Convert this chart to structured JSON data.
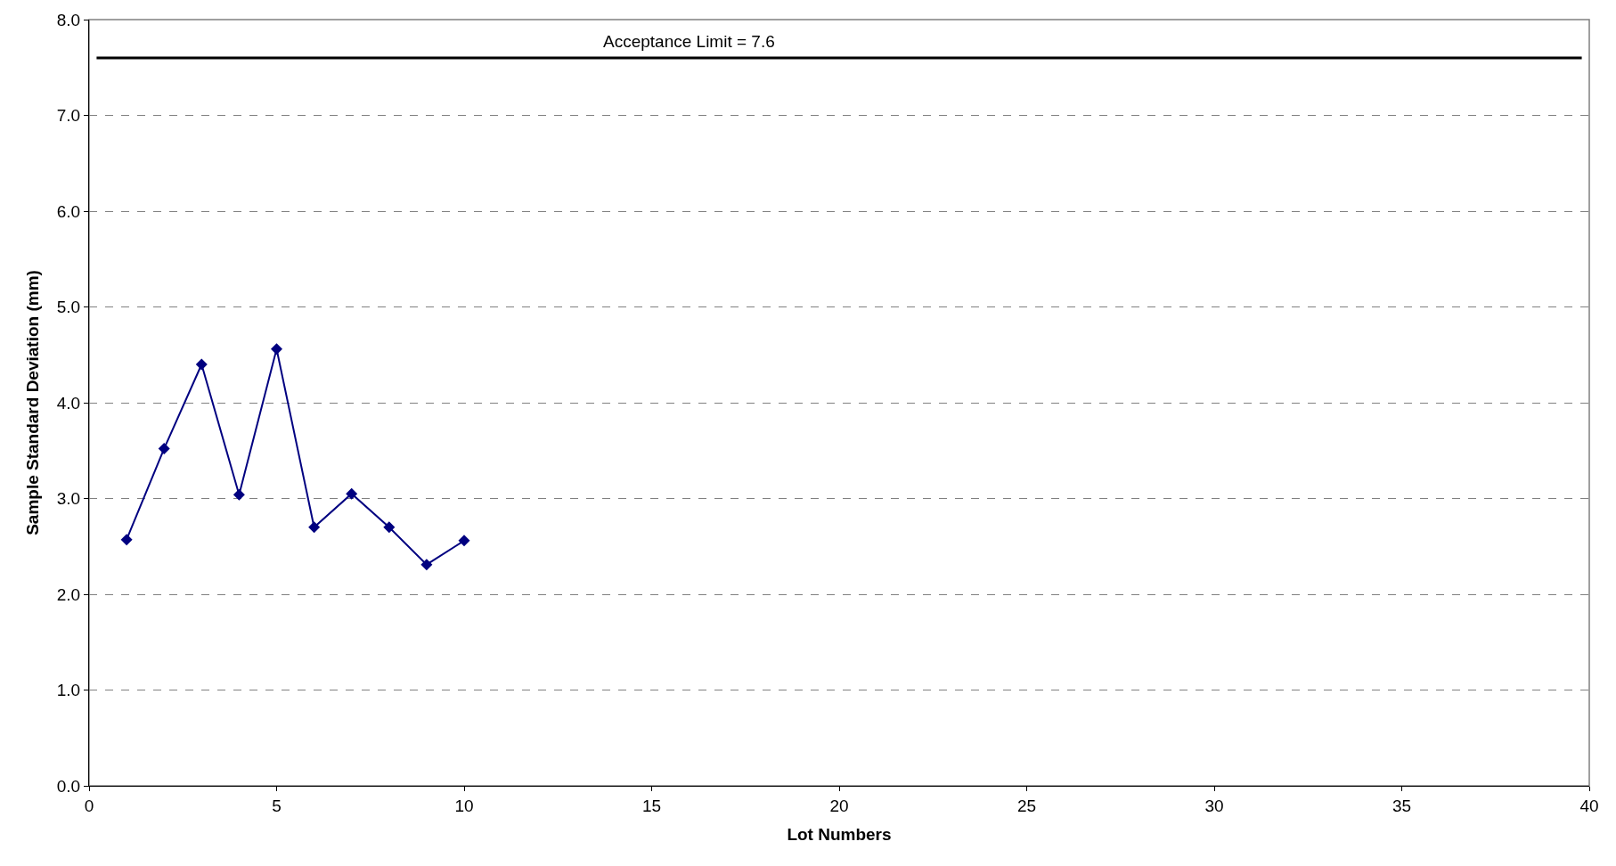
{
  "chart_data": {
    "type": "line",
    "xlabel": "Lot Numbers",
    "ylabel": "Sample Standard Deviation (mm)",
    "x": [
      1,
      2,
      3,
      4,
      5,
      6,
      7,
      8,
      9,
      10
    ],
    "series": [
      {
        "color": "#000080",
        "values": [
          2.57,
          3.52,
          4.4,
          3.04,
          4.56,
          2.7,
          3.05,
          2.7,
          2.31,
          2.56
        ]
      }
    ],
    "xlim": [
      0,
      40
    ],
    "xticks": [
      0,
      5,
      10,
      15,
      20,
      25,
      30,
      35,
      40
    ],
    "ylim": [
      0,
      8
    ],
    "yticks": [
      {
        "value": 0,
        "label": "0.0"
      },
      {
        "value": 1,
        "label": "1.0"
      },
      {
        "value": 2,
        "label": "2.0"
      },
      {
        "value": 3,
        "label": "3.0"
      },
      {
        "value": 4,
        "label": "4.0"
      },
      {
        "value": 5,
        "label": "5.0"
      },
      {
        "value": 6,
        "label": "6.0"
      },
      {
        "value": 7,
        "label": "7.0"
      },
      {
        "value": 8,
        "label": "8.0"
      }
    ],
    "ref_lines": [
      {
        "axis": "y",
        "value": 7.6,
        "label": "Acceptance Limit = 7.6",
        "color": "#000000",
        "line_style": "solid"
      }
    ],
    "grid": "y",
    "legend": false,
    "marker": "diamond",
    "line_style": "solid"
  }
}
